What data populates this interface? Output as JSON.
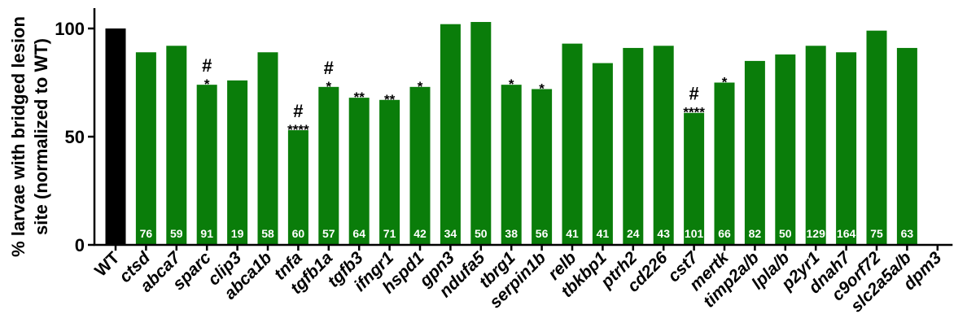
{
  "chart_data": {
    "type": "bar",
    "ylabel_lines": [
      "% larvae with bridged lesion",
      "site (normalized to WT)"
    ],
    "xlabel": "",
    "ylim": [
      0,
      100
    ],
    "yticks": [
      0,
      50,
      100
    ],
    "colors": {
      "control": "#000000",
      "bar": "#0a7d0a",
      "n_label": "#ffffff"
    },
    "categories": [
      "WT",
      "ctsd",
      "abca7",
      "sparc",
      "clip3",
      "abca1b",
      "tnfa",
      "tgfb1a",
      "tgfb3",
      "ifngr1",
      "hspd1",
      "gpn3",
      "ndufa5",
      "tbrg1",
      "serpin1b",
      "relb",
      "tbkbp1",
      "ptrh2",
      "cd226",
      "cst7",
      "mertk",
      "timp2a/b",
      "lpla/b",
      "p2yr1",
      "dnah7",
      "c9orf72",
      "slc2a5a/b",
      "dpm3"
    ],
    "values": [
      100,
      89,
      92,
      74,
      76,
      89,
      53,
      73,
      68,
      67,
      73,
      102,
      103,
      74,
      72,
      93,
      84,
      91,
      92,
      61,
      75,
      85,
      88,
      92,
      89,
      99,
      91,
      null
    ],
    "n": [
      "",
      "76",
      "59",
      "91",
      "19",
      "58",
      "60",
      "57",
      "64",
      "71",
      "42",
      "34",
      "50",
      "38",
      "56",
      "41",
      "41",
      "24",
      "43",
      "101",
      "66",
      "82",
      "50",
      "129",
      "164",
      "75",
      "63",
      ""
    ],
    "significance": [
      "",
      "",
      "",
      "*",
      "",
      "",
      "****",
      "*",
      "**",
      "**",
      "*",
      "",
      "",
      "*",
      "*",
      "",
      "",
      "",
      "",
      "****",
      "*",
      "",
      "",
      "",
      "",
      "",
      "",
      ""
    ],
    "hash": [
      "",
      "",
      "",
      "#",
      "",
      "",
      "#",
      "#",
      "",
      "",
      "",
      "",
      "",
      "",
      "",
      "",
      "",
      "",
      "",
      "#",
      "",
      "",
      "",
      "",
      "",
      "",
      "",
      ""
    ]
  }
}
